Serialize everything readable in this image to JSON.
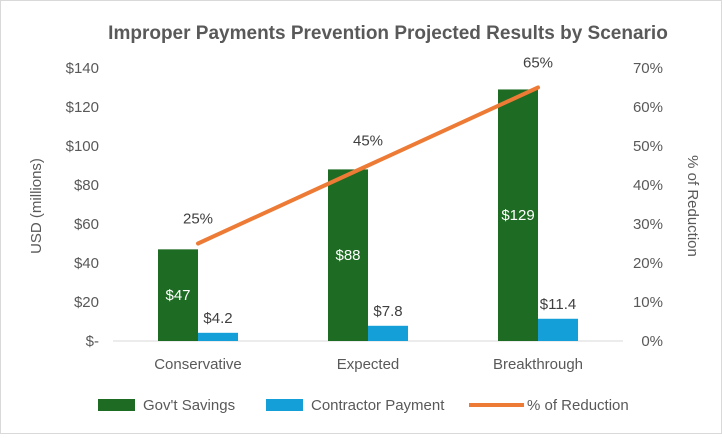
{
  "chart_data": {
    "type": "bar+line",
    "title": "Improper Payments Prevention Projected Results by Scenario",
    "categories": [
      "Conservative",
      "Expected",
      "Breakthrough"
    ],
    "series": [
      {
        "name": "Gov't Savings",
        "type": "bar",
        "axis": "left",
        "values": [
          47,
          88,
          129
        ],
        "labels": [
          "$47",
          "$88",
          "$129"
        ],
        "color": "#1e6b23"
      },
      {
        "name": "Contractor Payment",
        "type": "bar",
        "axis": "left",
        "values": [
          4.2,
          7.8,
          11.4
        ],
        "labels": [
          "$4.2",
          "$7.8",
          "$11.4"
        ],
        "color": "#159fd8"
      },
      {
        "name": "% of Reduction",
        "type": "line",
        "axis": "right",
        "values": [
          25,
          45,
          65
        ],
        "labels": [
          "25%",
          "45%",
          "65%"
        ],
        "color": "#ed7b35"
      }
    ],
    "left_axis": {
      "label": "USD (millions)",
      "ylim": [
        0,
        140
      ],
      "ticks": [
        0,
        20,
        40,
        60,
        80,
        100,
        120,
        140
      ],
      "tick_labels": [
        "$-",
        "$20",
        "$40",
        "$60",
        "$80",
        "$100",
        "$120",
        "$140"
      ]
    },
    "right_axis": {
      "label": "% of Reduction",
      "ylim": [
        0,
        70
      ],
      "ticks": [
        0,
        10,
        20,
        30,
        40,
        50,
        60,
        70
      ],
      "tick_labels": [
        "0%",
        "10%",
        "20%",
        "30%",
        "40%",
        "50%",
        "60%",
        "70%"
      ]
    },
    "grid": false,
    "legend": "bottom"
  }
}
